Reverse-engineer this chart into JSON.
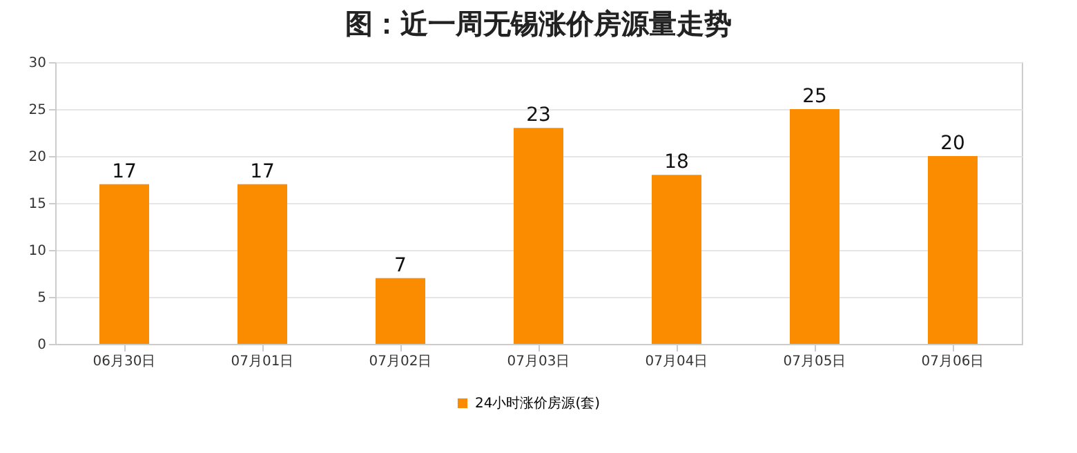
{
  "chart_data": {
    "type": "bar",
    "title": "图：近一周无锡涨价房源量走势",
    "categories": [
      "06月30日",
      "07月01日",
      "07月02日",
      "07月03日",
      "07月04日",
      "07月05日",
      "07月06日"
    ],
    "series": [
      {
        "name": "24小时涨价房源(套)",
        "color": "#fb8c00",
        "values": [
          17,
          17,
          7,
          23,
          18,
          25,
          20
        ]
      }
    ],
    "ylim": [
      0,
      30
    ],
    "yticks": [
      0,
      5,
      10,
      15,
      20,
      25,
      30
    ],
    "grid": "y",
    "legend": "bottom",
    "data_labels": true
  }
}
